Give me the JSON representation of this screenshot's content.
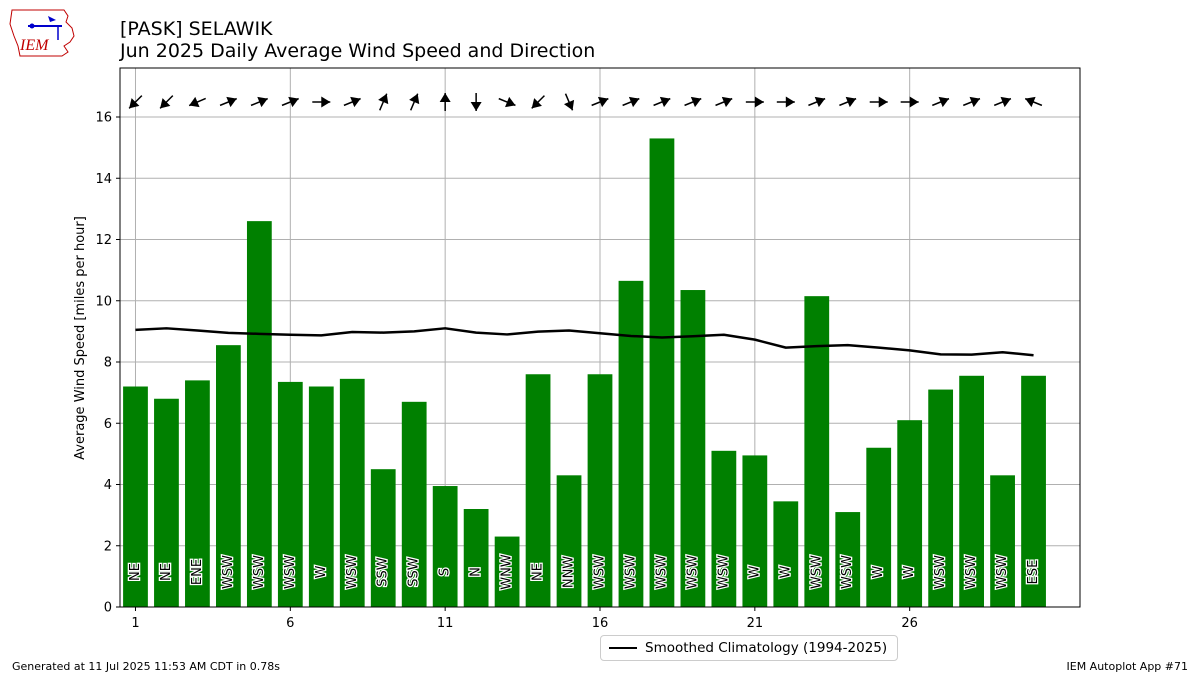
{
  "header": {
    "logo_text": "IEM",
    "title_line1": "[PASK] SELAWIK",
    "title_line2": "Jun 2025 Daily Average Wind Speed and Direction"
  },
  "footer": {
    "left": "Generated at 11 Jul 2025 11:53 AM CDT in 0.78s",
    "right": "IEM Autoplot App #71"
  },
  "legend": {
    "label": "Smoothed Climatology (1994-2025)"
  },
  "colors": {
    "bar": "#008000",
    "line": "#000000",
    "grid": "#b0b0b0",
    "arrow": "#000000"
  },
  "chart_data": {
    "type": "bar",
    "xlabel": "",
    "ylabel": "Average Wind Speed [miles per hour]",
    "xticks": [
      1,
      6,
      11,
      16,
      21,
      26
    ],
    "yticks": [
      0,
      2,
      4,
      6,
      8,
      10,
      12,
      14,
      16
    ],
    "xlim": [
      0.5,
      31.5
    ],
    "ylim": [
      0,
      17.6
    ],
    "grid": true,
    "legend_position": "below",
    "days": [
      1,
      2,
      3,
      4,
      5,
      6,
      7,
      8,
      9,
      10,
      11,
      12,
      13,
      14,
      15,
      16,
      17,
      18,
      19,
      20,
      21,
      22,
      23,
      24,
      25,
      26,
      27,
      28,
      29,
      30
    ],
    "speed": [
      7.2,
      6.8,
      7.4,
      8.55,
      12.6,
      7.35,
      7.2,
      7.45,
      4.5,
      6.7,
      3.95,
      3.2,
      2.3,
      7.6,
      4.3,
      7.6,
      10.65,
      15.3,
      10.35,
      5.1,
      4.95,
      3.45,
      10.15,
      3.1,
      5.2,
      6.1,
      7.1,
      7.55,
      4.3,
      7.55
    ],
    "direction_label": [
      "NE",
      "NE",
      "ENE",
      "WSW",
      "WSW",
      "WSW",
      "W",
      "WSW",
      "SSW",
      "SSW",
      "S",
      "N",
      "WNW",
      "NE",
      "NNW",
      "WSW",
      "WSW",
      "WSW",
      "WSW",
      "WSW",
      "W",
      "W",
      "WSW",
      "WSW",
      "W",
      "W",
      "WSW",
      "WSW",
      "WSW",
      "ESE"
    ],
    "direction_deg": [
      45,
      45,
      67,
      248,
      248,
      248,
      270,
      248,
      203,
      203,
      180,
      0,
      292,
      45,
      337,
      248,
      248,
      248,
      248,
      248,
      270,
      270,
      248,
      248,
      270,
      270,
      248,
      248,
      248,
      112
    ],
    "series": [
      {
        "name": "Smoothed Climatology (1994-2025)",
        "values": [
          9.05,
          9.1,
          9.03,
          8.95,
          8.92,
          8.89,
          8.87,
          8.98,
          8.96,
          9.0,
          9.1,
          8.96,
          8.9,
          8.99,
          9.03,
          8.94,
          8.85,
          8.8,
          8.84,
          8.89,
          8.73,
          8.47,
          8.52,
          8.55,
          8.47,
          8.38,
          8.25,
          8.24,
          8.32,
          8.22
        ]
      }
    ]
  }
}
